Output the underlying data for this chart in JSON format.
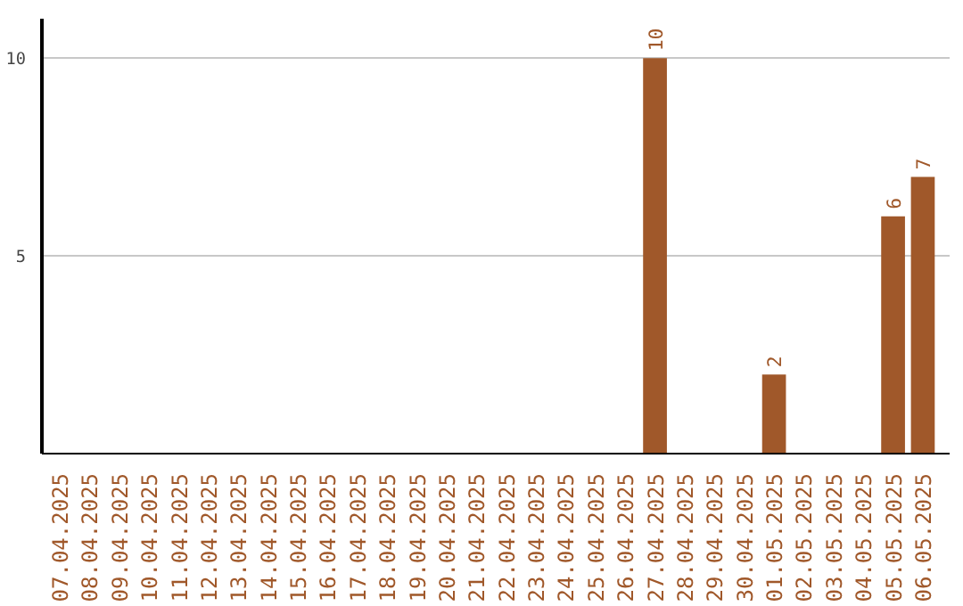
{
  "chart_data": {
    "type": "bar",
    "categories": [
      "07.04.2025",
      "08.04.2025",
      "09.04.2025",
      "10.04.2025",
      "11.04.2025",
      "12.04.2025",
      "13.04.2025",
      "14.04.2025",
      "15.04.2025",
      "16.04.2025",
      "17.04.2025",
      "18.04.2025",
      "19.04.2025",
      "20.04.2025",
      "21.04.2025",
      "22.04.2025",
      "23.04.2025",
      "24.04.2025",
      "25.04.2025",
      "26.04.2025",
      "27.04.2025",
      "28.04.2025",
      "29.04.2025",
      "30.04.2025",
      "01.05.2025",
      "02.05.2025",
      "03.05.2025",
      "04.05.2025",
      "05.05.2025",
      "06.05.2025"
    ],
    "values": [
      0,
      0,
      0,
      0,
      0,
      0,
      0,
      0,
      0,
      0,
      0,
      0,
      0,
      0,
      0,
      0,
      0,
      0,
      0,
      0,
      10,
      0,
      0,
      0,
      2,
      0,
      0,
      0,
      6,
      7
    ],
    "value_labels": [
      null,
      null,
      null,
      null,
      null,
      null,
      null,
      null,
      null,
      null,
      null,
      null,
      null,
      null,
      null,
      null,
      null,
      null,
      null,
      null,
      "10",
      null,
      null,
      null,
      "2",
      null,
      null,
      null,
      "6",
      "7"
    ],
    "color": "#a0582a",
    "ylim": [
      0,
      11
    ],
    "yticks": [
      5,
      10
    ],
    "grid": "y"
  }
}
